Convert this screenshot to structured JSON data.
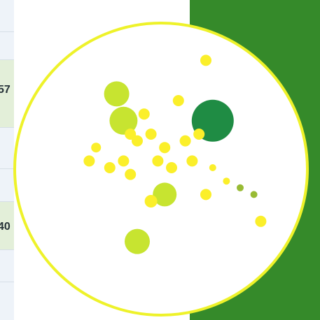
{
  "left_table": {
    "values": [
      "57",
      "40"
    ]
  },
  "colors": {
    "panel_green": "#358a2a",
    "ring": "#eef22a",
    "bubble_yellow": "#fbef2a",
    "bubble_lime": "#c7e430",
    "bubble_dark": "#1f8c44",
    "bubble_olive": "#98bb34"
  },
  "chart_data": {
    "type": "scatter",
    "title": "",
    "xlabel": "",
    "ylabel": "",
    "grid": false,
    "legend": "none",
    "series": [
      {
        "points": [
          {
            "x": 14,
            "y": 22,
            "r": 7,
            "color": "yellow"
          },
          {
            "x": 17,
            "y": 14,
            "r": 18,
            "color": "lime"
          },
          {
            "x": 18,
            "y": 18,
            "r": 20,
            "color": "lime"
          },
          {
            "x": 20,
            "y": 21,
            "r": 8,
            "color": "yellow"
          },
          {
            "x": 21,
            "y": 17,
            "r": 8,
            "color": "yellow"
          },
          {
            "x": 22,
            "y": 20,
            "r": 8,
            "color": "yellow"
          },
          {
            "x": 19,
            "y": 20,
            "r": 8,
            "color": "yellow"
          },
          {
            "x": 24,
            "y": 22,
            "r": 8,
            "color": "yellow"
          },
          {
            "x": 23,
            "y": 24,
            "r": 8,
            "color": "yellow"
          },
          {
            "x": 25,
            "y": 25,
            "r": 8,
            "color": "yellow"
          },
          {
            "x": 27,
            "y": 21,
            "r": 8,
            "color": "yellow"
          },
          {
            "x": 26,
            "y": 15,
            "r": 8,
            "color": "yellow"
          },
          {
            "x": 30,
            "y": 9,
            "r": 8,
            "color": "yellow"
          },
          {
            "x": 31,
            "y": 18,
            "r": 30,
            "color": "dark"
          },
          {
            "x": 29,
            "y": 20,
            "r": 8,
            "color": "yellow"
          },
          {
            "x": 28,
            "y": 24,
            "r": 8,
            "color": "yellow"
          },
          {
            "x": 24,
            "y": 29,
            "r": 17,
            "color": "lime"
          },
          {
            "x": 22,
            "y": 30,
            "r": 9,
            "color": "yellow"
          },
          {
            "x": 30,
            "y": 29,
            "r": 8,
            "color": "yellow"
          },
          {
            "x": 31,
            "y": 25,
            "r": 5,
            "color": "yellow"
          },
          {
            "x": 33,
            "y": 27,
            "r": 5,
            "color": "yellow"
          },
          {
            "x": 35,
            "y": 28,
            "r": 5,
            "color": "olive"
          },
          {
            "x": 37,
            "y": 29,
            "r": 5,
            "color": "olive"
          },
          {
            "x": 38,
            "y": 33,
            "r": 8,
            "color": "yellow"
          },
          {
            "x": 20,
            "y": 36,
            "r": 18,
            "color": "lime"
          },
          {
            "x": 18,
            "y": 24,
            "r": 8,
            "color": "yellow"
          },
          {
            "x": 19,
            "y": 26,
            "r": 8,
            "color": "yellow"
          },
          {
            "x": 13,
            "y": 24,
            "r": 8,
            "color": "yellow"
          },
          {
            "x": 16,
            "y": 25,
            "r": 8,
            "color": "yellow"
          }
        ]
      }
    ]
  }
}
